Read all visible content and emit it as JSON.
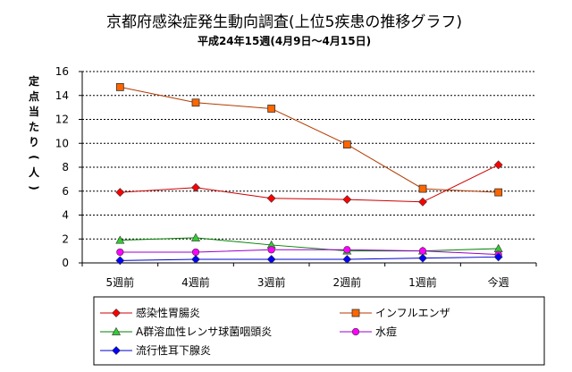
{
  "chart_data": {
    "type": "line",
    "title": "京都府感染症発生動向調査(上位5疾患の推移グラフ)",
    "subtitle": "平成24年15週(4月9日～4月15日)",
    "ylabel": "定点当たり(人)",
    "xlabel": "",
    "categories": [
      "5週前",
      "4週前",
      "3週前",
      "2週前",
      "1週前",
      "今週"
    ],
    "ylim": [
      0,
      16
    ],
    "yticks": [
      "0",
      "2",
      "4",
      "6",
      "8",
      "10",
      "12",
      "14",
      "16"
    ],
    "grid": true,
    "legend_position": "bottom",
    "series": [
      {
        "name": "感染性胃腸炎",
        "values": [
          5.9,
          6.3,
          5.4,
          5.3,
          5.1,
          8.2
        ],
        "line_color": "#cc0000",
        "marker_color": "#ff0000",
        "marker": "diamond"
      },
      {
        "name": "インフルエンザ",
        "values": [
          14.7,
          13.4,
          12.9,
          9.9,
          6.2,
          5.9
        ],
        "line_color": "#b33a00",
        "marker_color": "#ff6600",
        "marker": "square"
      },
      {
        "name": "A群溶血性レンサ球菌咽頭炎",
        "values": [
          1.9,
          2.1,
          1.5,
          1.0,
          1.0,
          1.2
        ],
        "line_color": "#008000",
        "marker_color": "#33cc33",
        "marker": "triangle"
      },
      {
        "name": "水痘",
        "values": [
          0.9,
          0.9,
          1.1,
          1.1,
          1.0,
          0.7
        ],
        "line_color": "#9900cc",
        "marker_color": "#ff00ff",
        "marker": "circle"
      },
      {
        "name": "流行性耳下腺炎",
        "values": [
          0.2,
          0.3,
          0.3,
          0.3,
          0.4,
          0.5
        ],
        "line_color": "#0000cc",
        "marker_color": "#0000ff",
        "marker": "diamond"
      }
    ]
  }
}
